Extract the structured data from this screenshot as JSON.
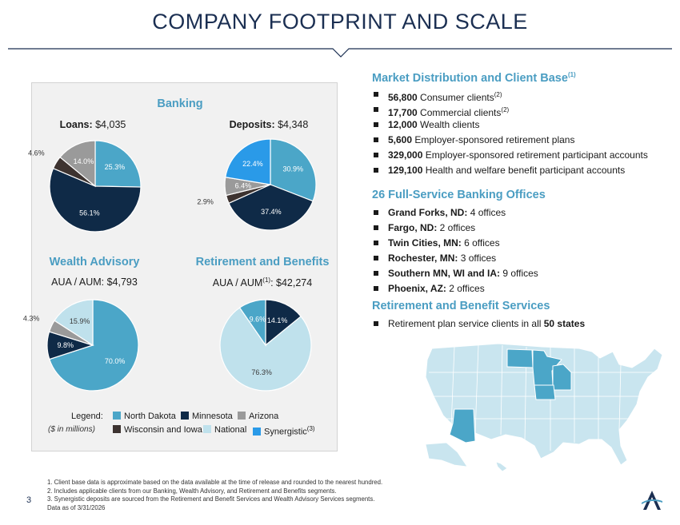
{
  "title": "COMPANY FOOTPRINT AND SCALE",
  "banking": {
    "title": "Banking",
    "loans": {
      "label": "Loans:",
      "value": "$4,035"
    },
    "deposits": {
      "label": "Deposits:",
      "value": "$4,348"
    }
  },
  "wealth": {
    "title": "Wealth Advisory",
    "sub": "AUA / AUM: $4,793"
  },
  "retirement": {
    "title": "Retirement and Benefits",
    "sub_prefix": "AUA / AUM",
    "sub_sup": "(1)",
    "sub_suffix": ": $42,274"
  },
  "chart_data": [
    {
      "type": "pie",
      "title": "Loans: $4,035",
      "labels": [
        "North Dakota",
        "Minnesota",
        "Wisconsin and Iowa",
        "Arizona"
      ],
      "values": [
        25.3,
        56.1,
        4.6,
        14.0
      ]
    },
    {
      "type": "pie",
      "title": "Deposits: $4,348",
      "labels": [
        "North Dakota",
        "Minnesota",
        "Wisconsin and Iowa",
        "Arizona",
        "Synergistic"
      ],
      "values": [
        30.9,
        37.4,
        2.9,
        6.4,
        22.4
      ]
    },
    {
      "type": "pie",
      "title": "AUA / AUM: $4,793",
      "labels": [
        "North Dakota",
        "Minnesota",
        "Arizona",
        "National"
      ],
      "values": [
        70.0,
        9.8,
        4.3,
        15.9
      ]
    },
    {
      "type": "pie",
      "title": "AUA / AUM(1): $42,274",
      "labels": [
        "Minnesota",
        "National",
        "North Dakota"
      ],
      "values": [
        14.1,
        76.3,
        9.6
      ]
    }
  ],
  "pie_labels": {
    "loans": [
      "25.3%",
      "56.1%",
      "4.6%",
      "14.0%"
    ],
    "deposits": [
      "30.9%",
      "37.4%",
      "2.9%",
      "6.4%",
      "22.4%"
    ],
    "wealth": [
      "70.0%",
      "9.8%",
      "4.3%",
      "15.9%"
    ],
    "retirement": [
      "14.1%",
      "76.3%",
      "9.6%"
    ]
  },
  "legend": {
    "title": "Legend:",
    "note": "($ in millions)",
    "items": [
      "North Dakota",
      "Minnesota",
      "Arizona",
      "Wisconsin and Iowa",
      "National",
      "Synergistic"
    ],
    "synergistic_sup": "(3)"
  },
  "colors": {
    "north_dakota": "#4ba6c8",
    "minnesota": "#0f2a47",
    "arizona": "#9a9a9a",
    "wisconsin_iowa": "#3d3330",
    "national": "#bfe1ec",
    "synergistic": "#2a9ae8",
    "accent": "#4a9dc2"
  },
  "market": {
    "title": "Market Distribution and Client Base",
    "title_sup": "(1)",
    "items": [
      {
        "bold": "56,800",
        "text": " Consumer clients",
        "sup": "(2)"
      },
      {
        "bold": "17,700",
        "text": " Commercial clients",
        "sup": "(2)"
      },
      {
        "bold": "12,000",
        "text": " Wealth clients",
        "sup": ""
      },
      {
        "bold": "5,600",
        "text": " Employer-sponsored retirement plans",
        "sup": ""
      },
      {
        "bold": "329,000",
        "text": " Employer-sponsored retirement participant accounts",
        "sup": ""
      },
      {
        "bold": "129,100",
        "text": " Health and welfare benefit participant accounts",
        "sup": ""
      }
    ]
  },
  "offices": {
    "title": "26 Full-Service Banking Offices",
    "items": [
      {
        "bold": "Grand Forks, ND:",
        "text": " 4 offices"
      },
      {
        "bold": "Fargo, ND:",
        "text": " 2 offices"
      },
      {
        "bold": "Twin Cities, MN:",
        "text": " 6 offices"
      },
      {
        "bold": "Rochester, MN:",
        "text": " 3 offices"
      },
      {
        "bold": "Southern MN, WI and IA:",
        "text": " 9 offices"
      },
      {
        "bold": "Phoenix, AZ:",
        "text": " 2 offices"
      }
    ]
  },
  "services": {
    "title": "Retirement and Benefit Services",
    "item_text": "Retirement plan service clients in all ",
    "item_bold": "50 states"
  },
  "footnotes": [
    "1. Client base data is approximate based on the data available at the time of release and rounded to the nearest hundred.",
    "2. Includes applicable clients from our Banking, Wealth Advisory, and Retirement and Benefits segments.",
    "3. Synergistic deposits are sourced from the Retirement and Benefit Services and Wealth Advisory Services segments.",
    "Data as of 3/31/2026"
  ],
  "page_number": "3"
}
